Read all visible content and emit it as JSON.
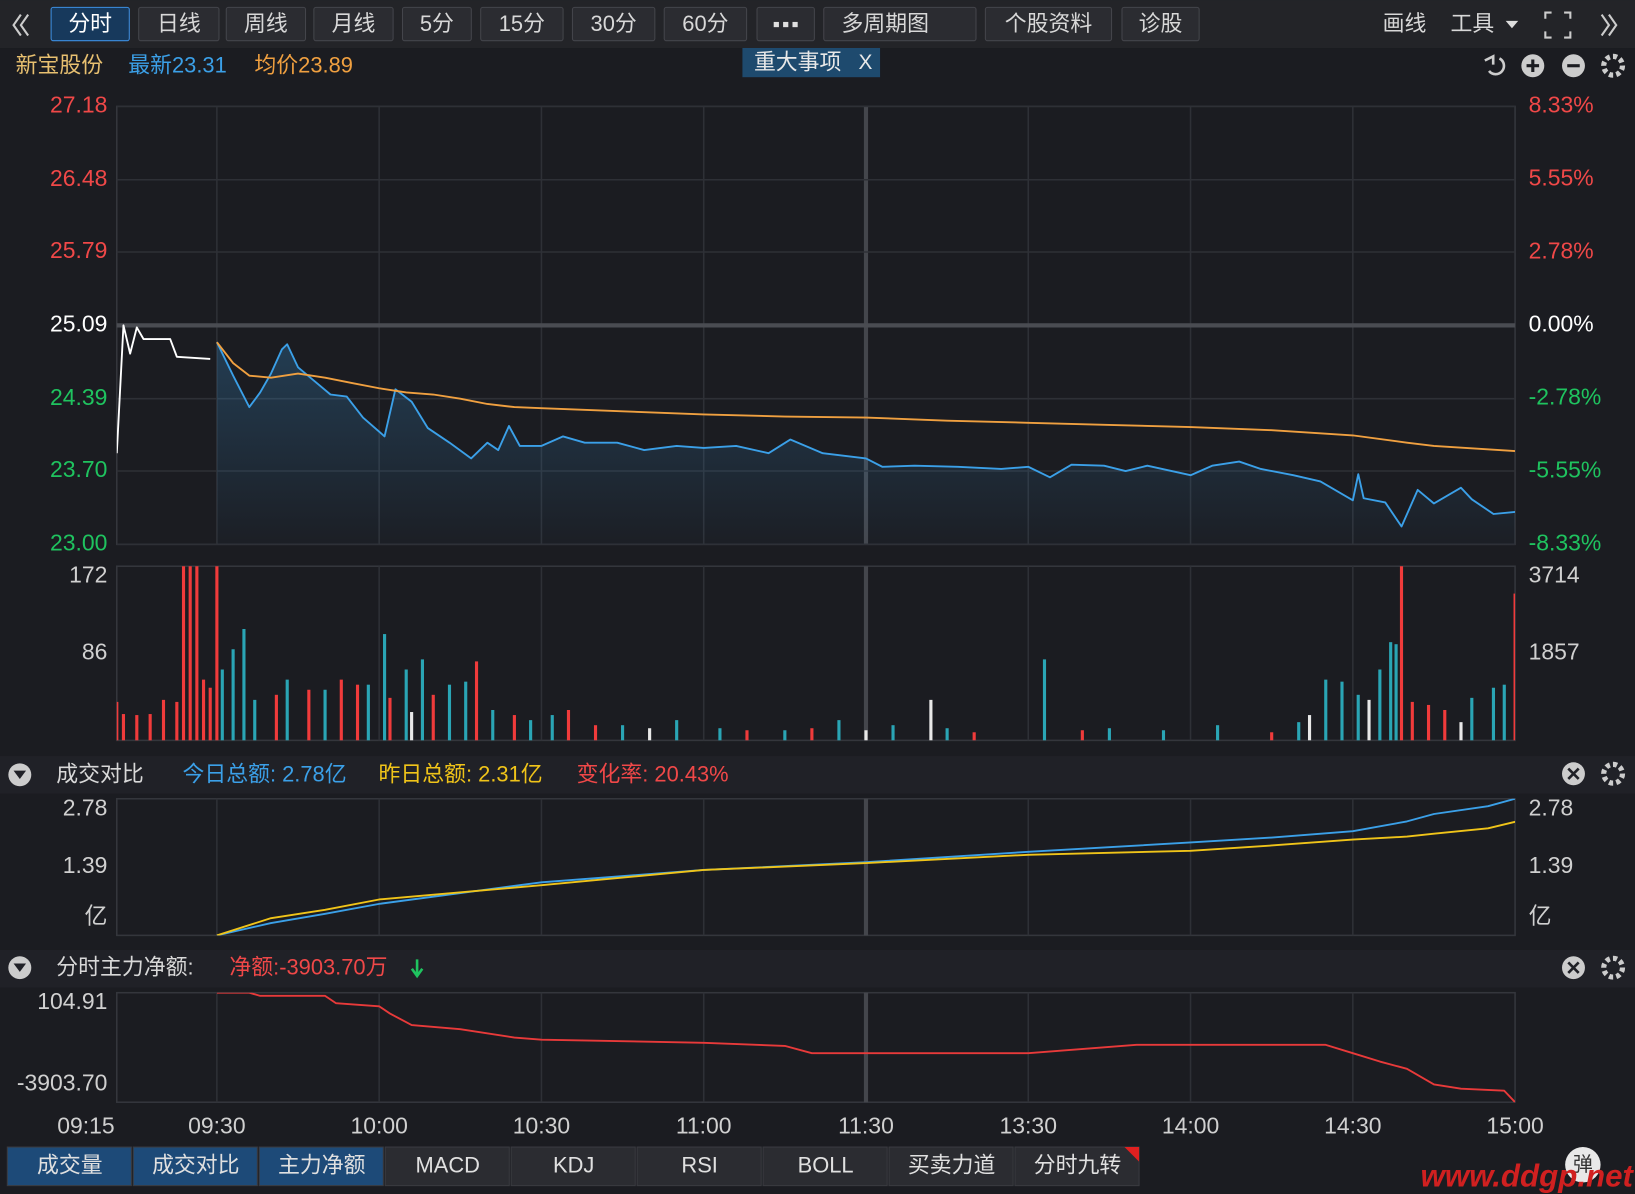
{
  "toolbar": {
    "tabs": [
      "分时",
      "日线",
      "周线",
      "月线",
      "5分",
      "15分",
      "30分",
      "60分",
      "多周期图",
      "个股资料",
      "诊股"
    ],
    "right": [
      "画线",
      "工具"
    ]
  },
  "header": {
    "name": "新宝股份",
    "latest": "最新23.31",
    "avg": "均价23.89",
    "event": "重大事项",
    "event_close": "X"
  },
  "amount_header": {
    "title": "成交对比",
    "today": "今日总额: 2.78亿",
    "yesterday": "昨日总额: 2.31亿",
    "change": "变化率: 20.43%"
  },
  "flow_header": {
    "title": "分时主力净额:",
    "net": "净额:-3903.70万"
  },
  "bottom_tabs": [
    "成交量",
    "成交对比",
    "主力净额",
    "MACD",
    "KDJ",
    "RSI",
    "BOLL",
    "买卖力道",
    "分时九转"
  ],
  "popup_button": "弹",
  "watermark": "www.ddgp.net",
  "chart_data": [
    {
      "type": "line",
      "grid": true,
      "ylim": [
        23.0,
        27.18
      ],
      "yticks": [
        {
          "value": 23.0,
          "label": "23.00"
        },
        {
          "value": 23.7,
          "label": "23.70"
        },
        24.39,
        25.09,
        25.79,
        26.48,
        27.18
      ],
      "y2lim": [
        -8.33,
        8.33
      ],
      "y2ticks": [
        {
          "value": -8.33,
          "label": "-8.33%"
        },
        {
          "value": -5.55,
          "label": "-5.55%"
        },
        {
          "value": -2.78,
          "label": "-2.78%"
        },
        {
          "value": 0,
          "label": "0.00%"
        },
        {
          "value": 2.78,
          "label": "2.78%"
        },
        {
          "value": 5.55,
          "label": "5.55%"
        },
        {
          "value": 8.33,
          "label": "8.33%"
        }
      ],
      "series": [
        {
          "color": "#ffffff",
          "x": [
            "09:15",
            "09:16",
            "09:17",
            "09:18",
            "09:19",
            "09:23",
            "09:24",
            "09:29"
          ],
          "values": [
            23.87,
            25.09,
            24.82,
            25.07,
            24.96,
            24.96,
            24.79,
            24.77
          ]
        },
        {
          "color": "#3ba0e8",
          "area": true,
          "x": [
            "09:30",
            "09:33",
            "09:36",
            "09:38",
            "09:40",
            "09:42",
            "09:43",
            "09:45",
            "09:48",
            "09:51",
            "09:54",
            "09:57",
            "10:01",
            "10:03",
            "10:06",
            "10:09",
            "10:13",
            "10:17",
            "10:20",
            "10:22",
            "10:24",
            "10:26",
            "10:30",
            "10:34",
            "10:38",
            "10:44",
            "10:49",
            "10:55",
            "11:00",
            "11:06",
            "11:12",
            "11:16",
            "11:22",
            "11:30",
            "13:03",
            "13:09",
            "13:17",
            "13:25",
            "13:30",
            "13:34",
            "13:38",
            "13:44",
            "13:48",
            "13:52",
            "14:00",
            "14:04",
            "14:09",
            "14:13",
            "14:19",
            "14:24",
            "14:30",
            "14:31",
            "14:32",
            "14:36",
            "14:39",
            "14:42",
            "14:45",
            "14:50",
            "14:52",
            "14:56",
            "15:00"
          ],
          "values": [
            24.93,
            24.61,
            24.31,
            24.45,
            24.63,
            24.86,
            24.91,
            24.69,
            24.56,
            24.43,
            24.41,
            24.21,
            24.03,
            24.48,
            24.36,
            24.11,
            23.97,
            23.82,
            23.97,
            23.9,
            24.13,
            23.94,
            23.94,
            24.03,
            23.97,
            23.97,
            23.9,
            23.94,
            23.92,
            23.94,
            23.87,
            24.0,
            23.87,
            23.82,
            23.74,
            23.75,
            23.74,
            23.72,
            23.74,
            23.64,
            23.76,
            23.75,
            23.7,
            23.75,
            23.66,
            23.75,
            23.79,
            23.72,
            23.66,
            23.6,
            23.42,
            23.67,
            23.44,
            23.4,
            23.17,
            23.52,
            23.39,
            23.54,
            23.43,
            23.29,
            23.31
          ]
        },
        {
          "color": "#f0a040",
          "x": [
            "09:30",
            "09:33",
            "09:36",
            "09:40",
            "09:45",
            "09:50",
            "09:55",
            "10:00",
            "10:05",
            "10:10",
            "10:15",
            "10:20",
            "10:25",
            "10:30",
            "10:45",
            "11:00",
            "11:15",
            "11:30",
            "13:15",
            "13:30",
            "13:45",
            "14:00",
            "14:15",
            "14:30",
            "14:40",
            "14:45",
            "15:00"
          ],
          "values": [
            24.93,
            24.73,
            24.61,
            24.59,
            24.63,
            24.59,
            24.54,
            24.49,
            24.45,
            24.43,
            24.39,
            24.34,
            24.31,
            24.3,
            24.27,
            24.24,
            24.22,
            24.21,
            24.18,
            24.16,
            24.14,
            24.12,
            24.09,
            24.04,
            23.97,
            23.94,
            23.89
          ]
        }
      ]
    },
    {
      "type": "bar",
      "ylim": [
        0,
        172
      ],
      "yticks": [
        86,
        172
      ],
      "y2lim": [
        0,
        3714
      ],
      "y2ticks": [
        1857,
        3714
      ],
      "series": [
        {
          "color": "#f03b3b",
          "x": [
            "09:15",
            "09:16",
            "09:18",
            "09:20",
            "09:22",
            "09:24",
            "09:25",
            "09:26",
            "09:27",
            "09:28",
            "09:29",
            "09:30",
            "09:41",
            "09:47",
            "09:53",
            "09:56",
            "10:02",
            "10:10",
            "10:18",
            "10:25",
            "10:35",
            "10:40",
            "11:08",
            "11:20",
            "13:20",
            "13:40",
            "14:15",
            "14:39",
            "14:41",
            "14:44",
            "14:47",
            "15:00"
          ],
          "values": [
            38,
            26,
            25,
            26,
            40,
            38,
            200,
            180,
            190,
            60,
            52,
            260,
            45,
            50,
            60,
            55,
            42,
            45,
            78,
            25,
            30,
            15,
            10,
            12,
            8,
            10,
            8,
            300,
            38,
            35,
            30,
            145
          ]
        },
        {
          "color": "#2aa5b5",
          "x": [
            "09:31",
            "09:33",
            "09:35",
            "09:37",
            "09:43",
            "09:50",
            "09:58",
            "10:01",
            "10:05",
            "10:08",
            "10:13",
            "10:16",
            "10:21",
            "10:28",
            "10:32",
            "10:45",
            "10:55",
            "11:03",
            "11:15",
            "11:25",
            "13:05",
            "13:15",
            "13:33",
            "13:45",
            "13:55",
            "14:05",
            "14:20",
            "14:25",
            "14:28",
            "14:31",
            "14:35",
            "14:37",
            "14:38",
            "14:52",
            "14:56",
            "14:58"
          ],
          "values": [
            70,
            90,
            110,
            40,
            60,
            50,
            55,
            105,
            70,
            80,
            55,
            58,
            30,
            20,
            25,
            15,
            20,
            12,
            10,
            20,
            15,
            12,
            80,
            12,
            10,
            15,
            18,
            60,
            58,
            45,
            70,
            97,
            95,
            42,
            52,
            55
          ]
        },
        {
          "color": "#e8e8e8",
          "x": [
            "10:06",
            "10:50",
            "11:30",
            "13:12",
            "14:22",
            "14:33",
            "14:50"
          ],
          "values": [
            28,
            12,
            10,
            40,
            25,
            40,
            18
          ]
        }
      ]
    },
    {
      "type": "line",
      "ylim": [
        0,
        2.78
      ],
      "yticks": [
        {
          "value": 0,
          "label": "亿"
        },
        1.39,
        2.78
      ],
      "y2lim": [
        0,
        2.78
      ],
      "y2ticks": [
        {
          "value": 0,
          "label": "亿"
        },
        1.39,
        2.78
      ],
      "x": [
        "09:30",
        "09:40",
        "09:50",
        "10:00",
        "10:30",
        "11:00",
        "11:30",
        "13:30",
        "14:00",
        "14:15",
        "14:30",
        "14:40",
        "14:45",
        "14:55",
        "15:00"
      ],
      "series": [
        {
          "color": "#3ba0e8",
          "values": [
            0,
            0.25,
            0.44,
            0.64,
            1.08,
            1.33,
            1.49,
            1.7,
            1.89,
            1.99,
            2.12,
            2.32,
            2.47,
            2.63,
            2.78
          ]
        },
        {
          "color": "#f0c419",
          "values": [
            0,
            0.35,
            0.52,
            0.73,
            1.02,
            1.33,
            1.47,
            1.64,
            1.72,
            1.83,
            1.95,
            2.01,
            2.07,
            2.18,
            2.31
          ]
        }
      ]
    },
    {
      "type": "line",
      "ylim": [
        -3903.7,
        104.91
      ],
      "yticks": [
        {
          "value": -3903.7,
          "label": "-3903.70"
        },
        104.91
      ],
      "xticks": [
        "09:15",
        "09:30",
        "10:00",
        "10:30",
        "11:00",
        "11:30",
        "13:30",
        "14:00",
        "14:30",
        "15:00"
      ],
      "x": [
        "09:30",
        "09:36",
        "09:38",
        "09:50",
        "09:52",
        "10:00",
        "10:02",
        "10:06",
        "10:15",
        "10:25",
        "10:30",
        "11:00",
        "11:15",
        "11:20",
        "11:30",
        "13:30",
        "13:50",
        "14:00",
        "14:25",
        "14:30",
        "14:35",
        "14:40",
        "14:45",
        "14:50",
        "14:58",
        "15:00"
      ],
      "series": [
        {
          "color": "#e83a3a",
          "values": [
            104.91,
            104.91,
            -9.6,
            -9.6,
            -277,
            -391,
            -659,
            -1079,
            -1231,
            -1537,
            -1613,
            -1728,
            -1842,
            -2110,
            -2110,
            -2110,
            -1804,
            -1804,
            -1804,
            -2110,
            -2415,
            -2682,
            -3255,
            -3408,
            -3484,
            -3903.7
          ]
        }
      ]
    }
  ]
}
